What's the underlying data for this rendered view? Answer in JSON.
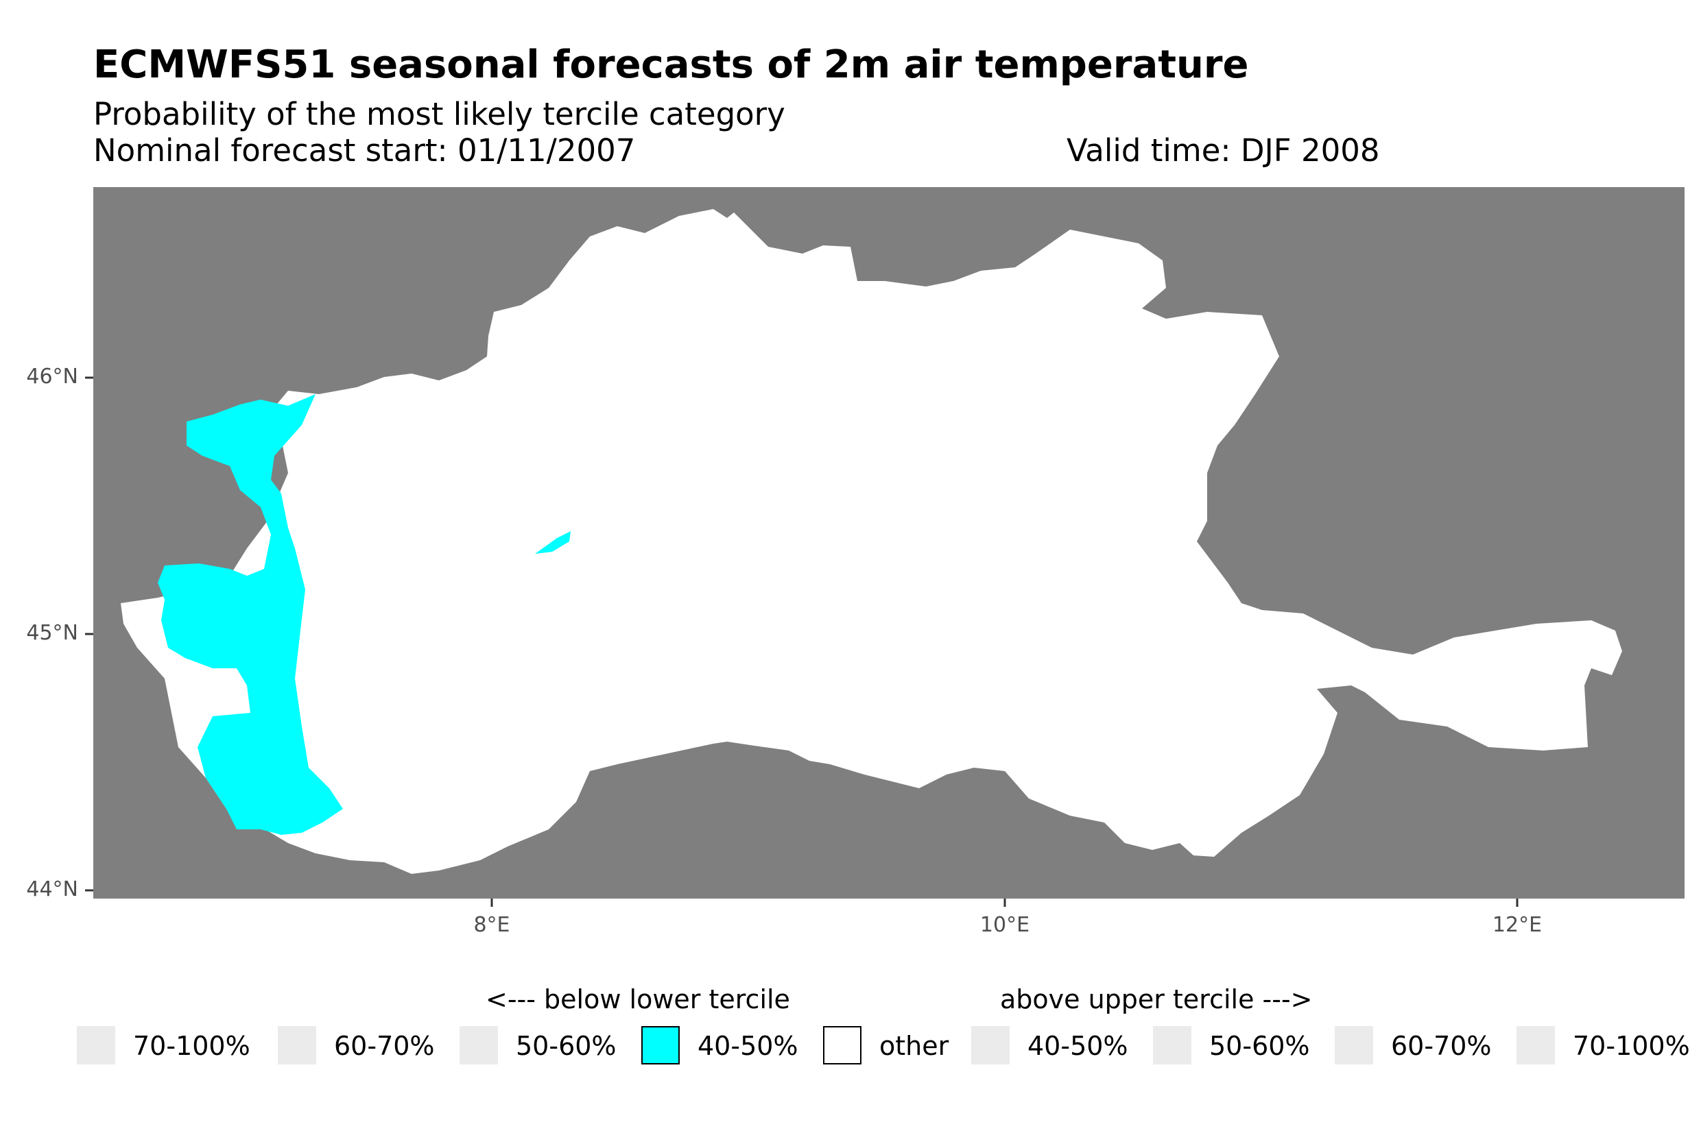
{
  "header": {
    "title": "ECMWFS51 seasonal forecasts of 2m air temperature",
    "subtitle": "Probability of the most likely tercile category",
    "forecast_start": "Nominal forecast start: 01/11/2007",
    "valid_time": "Valid time: DJF 2008"
  },
  "axes": {
    "y_ticks": [
      {
        "label": "46°N",
        "value": 46
      },
      {
        "label": "45°N",
        "value": 45
      },
      {
        "label": "44°N",
        "value": 44
      }
    ],
    "x_ticks": [
      {
        "label": "8°E",
        "value": 8
      },
      {
        "label": "10°E",
        "value": 10
      },
      {
        "label": "12°E",
        "value": 12
      }
    ],
    "lon_range": [
      6.45,
      12.65
    ],
    "lat_range": [
      43.95,
      46.7
    ]
  },
  "colors": {
    "panel_background": "#7f7f7f",
    "region_other": "#ffffff",
    "below_40_50": "#00ffff",
    "empty_swatch": "#ebebeb"
  },
  "legend": {
    "below_header": "<--- below lower tercile",
    "above_header": "above upper tercile --->",
    "items": [
      {
        "label": "70-100%",
        "color": "#ebebeb"
      },
      {
        "label": "60-70%",
        "color": "#ebebeb"
      },
      {
        "label": "50-60%",
        "color": "#ebebeb"
      },
      {
        "label": "40-50%",
        "color": "#00ffff"
      },
      {
        "label": "other",
        "color": "#ffffff"
      },
      {
        "label": "40-50%",
        "color": "#ebebeb"
      },
      {
        "label": "50-60%",
        "color": "#ebebeb"
      },
      {
        "label": "60-70%",
        "color": "#ebebeb"
      },
      {
        "label": "70-100%",
        "color": "#ebebeb"
      }
    ]
  }
}
